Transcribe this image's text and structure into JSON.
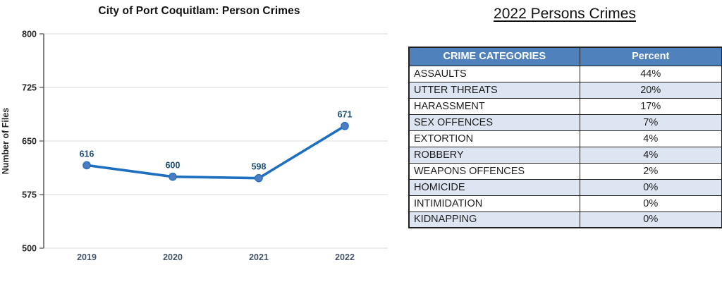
{
  "chart_data": {
    "type": "line",
    "title": "City of Port Coquitlam: Person Crimes",
    "categories": [
      "2019",
      "2020",
      "2021",
      "2022"
    ],
    "values": [
      616,
      600,
      598,
      671
    ],
    "xlabel": "",
    "ylabel": "Number of Files",
    "ylim": [
      500,
      800
    ],
    "yticks": [
      500,
      575,
      650,
      725,
      800
    ],
    "grid": true,
    "legend": "none",
    "line_color": "#1e6fc0",
    "marker_fill": "#4e7dbf",
    "data_label_color": "#1f4e79",
    "axis_color": "#595959",
    "gridline_color": "#d9d9d9",
    "ytick_color": "#262626",
    "xtick_color": "#44546a"
  },
  "table": {
    "title": "2022 Persons Crimes",
    "headers": [
      "CRIME CATEGORIES",
      "Percent"
    ],
    "header_bg": "#4f81bd",
    "stripe_bg": "#dce5f1",
    "rows": [
      {
        "category": "ASSAULTS",
        "percent": "44%"
      },
      {
        "category": "UTTER THREATS",
        "percent": "20%"
      },
      {
        "category": "HARASSMENT",
        "percent": "17%"
      },
      {
        "category": "SEX OFFENCES",
        "percent": "7%"
      },
      {
        "category": "EXTORTION",
        "percent": "4%"
      },
      {
        "category": "ROBBERY",
        "percent": "4%"
      },
      {
        "category": "WEAPONS OFFENCES",
        "percent": "2%"
      },
      {
        "category": "HOMICIDE",
        "percent": "0%"
      },
      {
        "category": "INTIMIDATION",
        "percent": "0%"
      },
      {
        "category": "KIDNAPPING",
        "percent": "0%"
      }
    ]
  }
}
